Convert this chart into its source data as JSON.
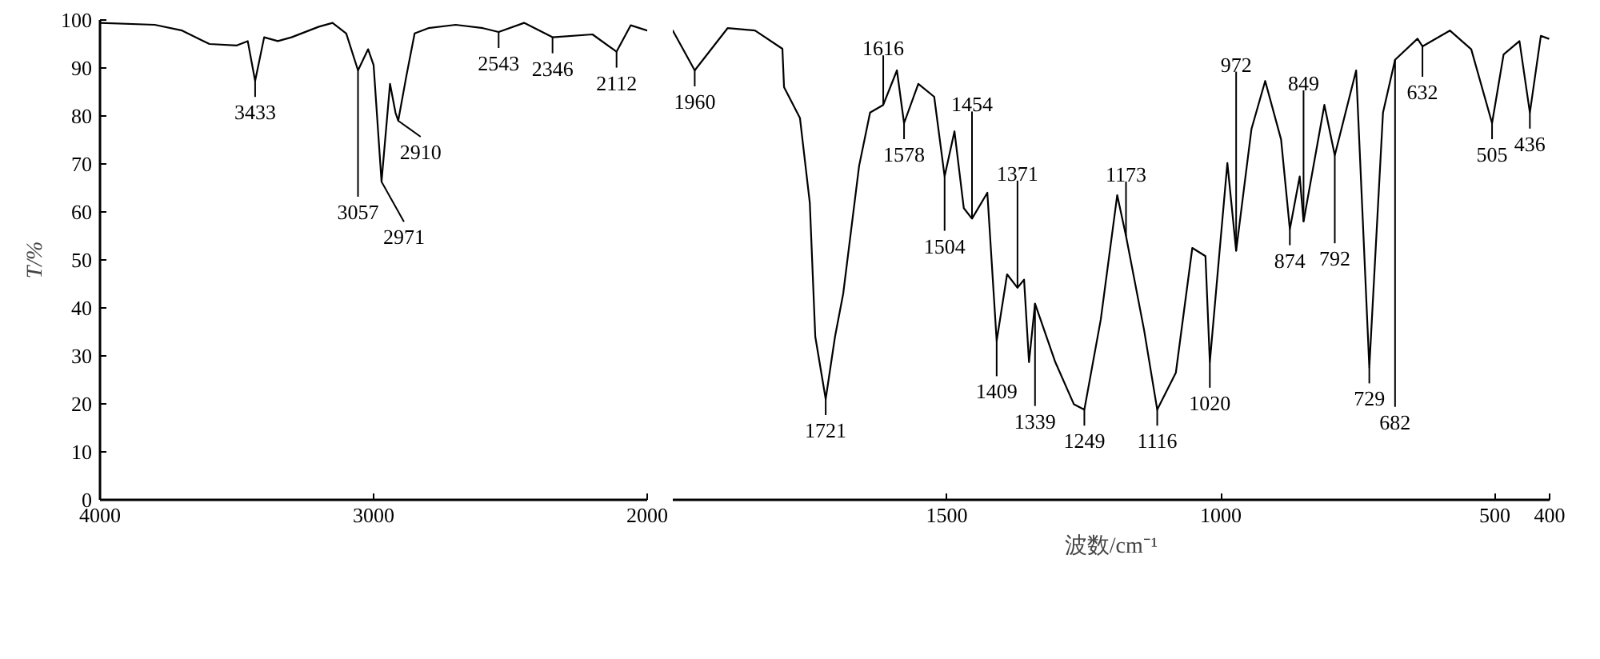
{
  "chart_data": [
    {
      "type": "line",
      "ylabel": "T/%",
      "xlim": [
        4000,
        2000
      ],
      "ylim": [
        0,
        100
      ],
      "xticks": [
        4000,
        3000,
        2000
      ],
      "grid": false,
      "legend": false,
      "yticks": [
        0,
        10,
        20,
        30,
        40,
        50,
        60,
        70,
        80,
        90,
        100
      ],
      "marker": "none",
      "line_style": "solid",
      "series": [
        {
          "color": "#000000",
          "x": [
            4000,
            3800,
            3700,
            3600,
            3500,
            3460,
            3433,
            3400,
            3350,
            3300,
            3200,
            3150,
            3100,
            3057,
            3020,
            3000,
            2971,
            2940,
            2920,
            2910,
            2880,
            2850,
            2800,
            2700,
            2600,
            2543,
            2450,
            2346,
            2200,
            2112,
            2060,
            2000
          ],
          "values": [
            99.4,
            99,
            97.8,
            95,
            94.7,
            95.6,
            87.3,
            96.4,
            95.6,
            96.4,
            98.6,
            99.4,
            97.2,
            89.5,
            93.9,
            90.6,
            66.3,
            86.7,
            80.7,
            79,
            88.4,
            97.2,
            98.3,
            99,
            98.3,
            97.5,
            99.4,
            96.4,
            97,
            93.4,
            98.9,
            97.8
          ]
        }
      ],
      "annotations": [
        {
          "text": "3433",
          "x": 3433,
          "y": 87.3
        },
        {
          "text": "3057",
          "x": 3057,
          "y": 89.5
        },
        {
          "text": "2971",
          "x": 2971,
          "y": 66.3
        },
        {
          "text": "2910",
          "x": 2910,
          "y": 79
        },
        {
          "text": "2543",
          "x": 2543,
          "y": 97.5
        },
        {
          "text": "2346",
          "x": 2346,
          "y": 96.4
        },
        {
          "text": "2112",
          "x": 2112,
          "y": 93.4
        }
      ]
    },
    {
      "type": "line",
      "xlabel": "波数/cm⁻¹",
      "xlim": [
        2000,
        400
      ],
      "ylim": [
        0,
        100
      ],
      "xticks": [
        1500,
        1000,
        500,
        400
      ],
      "yticks": [
        0,
        10,
        20,
        30,
        40,
        50,
        60,
        70,
        80,
        90,
        100
      ],
      "tick_labels": "x",
      "marker": "none",
      "line_style": "solid",
      "grid": false,
      "legend": false,
      "series": [
        {
          "color": "#000000",
          "x": [
            2000,
            1960,
            1900,
            1850,
            1800,
            1797,
            1768,
            1750,
            1740,
            1721,
            1704,
            1689,
            1660,
            1640,
            1616,
            1591,
            1578,
            1552,
            1523,
            1504,
            1486,
            1469,
            1454,
            1426,
            1409,
            1390,
            1371,
            1359,
            1350,
            1339,
            1302,
            1268,
            1249,
            1219,
            1189,
            1173,
            1140,
            1116,
            1082,
            1052,
            1028,
            1020,
            1003,
            988,
            972,
            944,
            919,
            890,
            874,
            856,
            849,
            811,
            792,
            753,
            729,
            704,
            682,
            641,
            632,
            582,
            543,
            505,
            484,
            455,
            436,
            416,
            402
          ],
          "values": [
            97.8,
            89.5,
            98.3,
            97.8,
            94,
            86,
            79.6,
            61.9,
            34,
            21,
            34,
            43,
            69.6,
            80.7,
            82.3,
            89.5,
            78.5,
            86.7,
            84,
            67.4,
            76.8,
            60.8,
            58.6,
            64,
            33.1,
            47,
            44.2,
            45.9,
            28.7,
            40.9,
            28.7,
            19.9,
            18.8,
            37.6,
            63.5,
            55,
            35.4,
            18.8,
            26.5,
            52.5,
            50.8,
            28.7,
            50.8,
            70.2,
            51.9,
            77.3,
            87.3,
            75.1,
            56.4,
            67.4,
            58,
            82.3,
            71.8,
            89.5,
            27.6,
            80.7,
            91.7,
            96.1,
            94.5,
            97.8,
            93.9,
            78.5,
            92.8,
            95.6,
            80.7,
            96.7,
            96.1
          ]
        }
      ],
      "annotations": [
        {
          "text": "1960",
          "x": 1960,
          "y": 89.5
        },
        {
          "text": "1721",
          "x": 1721,
          "y": 21
        },
        {
          "text": "1616",
          "x": 1616,
          "y": 82.3
        },
        {
          "text": "1578",
          "x": 1578,
          "y": 78.5
        },
        {
          "text": "1504",
          "x": 1504,
          "y": 67.4
        },
        {
          "text": "1454",
          "x": 1454,
          "y": 58.6
        },
        {
          "text": "1409",
          "x": 1409,
          "y": 33.1
        },
        {
          "text": "1371",
          "x": 1371,
          "y": 44.2
        },
        {
          "text": "1339",
          "x": 1339,
          "y": 40.9
        },
        {
          "text": "1249",
          "x": 1249,
          "y": 18.8
        },
        {
          "text": "1173",
          "x": 1173,
          "y": 55
        },
        {
          "text": "1116",
          "x": 1116,
          "y": 18.8
        },
        {
          "text": "1020",
          "x": 1020,
          "y": 28.7
        },
        {
          "text": "972",
          "x": 972,
          "y": 51.9
        },
        {
          "text": "874",
          "x": 874,
          "y": 56.4
        },
        {
          "text": "849",
          "x": 849,
          "y": 58
        },
        {
          "text": "792",
          "x": 792,
          "y": 71.8
        },
        {
          "text": "729",
          "x": 729,
          "y": 27.6
        },
        {
          "text": "682",
          "x": 682,
          "y": 91.7
        },
        {
          "text": "632",
          "x": 632,
          "y": 94.5
        },
        {
          "text": "505",
          "x": 505,
          "y": 78.5
        },
        {
          "text": "436",
          "x": 436,
          "y": 80.7
        }
      ]
    }
  ]
}
